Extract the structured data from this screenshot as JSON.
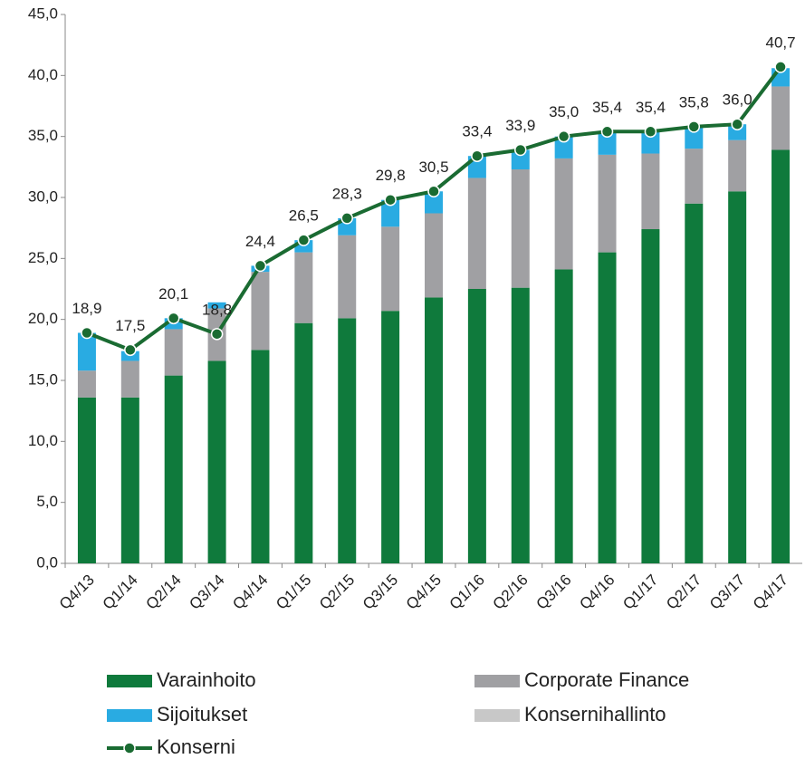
{
  "chart_data": {
    "type": "bar",
    "categories": [
      "Q4/13",
      "Q1/14",
      "Q2/14",
      "Q3/14",
      "Q4/14",
      "Q1/15",
      "Q2/15",
      "Q3/15",
      "Q4/15",
      "Q1/16",
      "Q2/16",
      "Q3/16",
      "Q4/16",
      "Q1/17",
      "Q2/17",
      "Q3/17",
      "Q4/17"
    ],
    "series": [
      {
        "name": "Varainhoito",
        "color": "#0f7a3c",
        "values": [
          13.6,
          13.6,
          15.4,
          16.6,
          17.5,
          19.7,
          20.1,
          20.7,
          21.8,
          22.5,
          22.6,
          24.1,
          25.5,
          27.4,
          29.5,
          30.5,
          33.9
        ]
      },
      {
        "name": "Corporate Finance",
        "color": "#a0a0a3",
        "values": [
          2.2,
          3.0,
          3.8,
          4.3,
          6.4,
          5.8,
          6.8,
          6.9,
          6.9,
          9.1,
          9.7,
          9.1,
          8.0,
          6.2,
          4.5,
          4.2,
          5.2
        ]
      },
      {
        "name": "Sijoitukset",
        "color": "#29abe2",
        "values": [
          3.1,
          0.8,
          0.9,
          0.5,
          0.5,
          1.0,
          1.4,
          2.2,
          1.8,
          1.8,
          1.6,
          1.8,
          1.9,
          1.8,
          1.8,
          1.3,
          1.5
        ]
      },
      {
        "name": "Konsernihallinto",
        "color": "#c8c8c8",
        "values": [
          0,
          0,
          0,
          0,
          0,
          0,
          0,
          0,
          0,
          0,
          0,
          0,
          0,
          0,
          0,
          0,
          0
        ]
      },
      {
        "name": "Konserni",
        "type": "line",
        "color": "#1a6b32",
        "values": [
          18.9,
          17.5,
          20.1,
          18.8,
          24.4,
          26.5,
          28.3,
          29.8,
          30.5,
          33.4,
          33.9,
          35.0,
          35.4,
          35.4,
          35.8,
          36.0,
          40.7
        ],
        "value_labels": [
          "18,9",
          "17,5",
          "20,1",
          "18,8",
          "24,4",
          "26,5",
          "28,3",
          "29,8",
          "30,5",
          "33,4",
          "33,9",
          "35,0",
          "35,4",
          "35,4",
          "35,8",
          "36,0",
          "40,7"
        ]
      }
    ],
    "ylim": [
      0,
      45
    ],
    "yticks": [
      {
        "value": 0,
        "label": "0,0"
      },
      {
        "value": 5,
        "label": "5,0"
      },
      {
        "value": 10,
        "label": "10,0"
      },
      {
        "value": 15,
        "label": "15,0"
      },
      {
        "value": 20,
        "label": "20,0"
      },
      {
        "value": 25,
        "label": "25,0"
      },
      {
        "value": 30,
        "label": "30,0"
      },
      {
        "value": 35,
        "label": "35,0"
      },
      {
        "value": 40,
        "label": "40,0"
      },
      {
        "value": 45,
        "label": "45,0"
      }
    ],
    "grid": false,
    "stacked": true,
    "legend": "bottom"
  }
}
